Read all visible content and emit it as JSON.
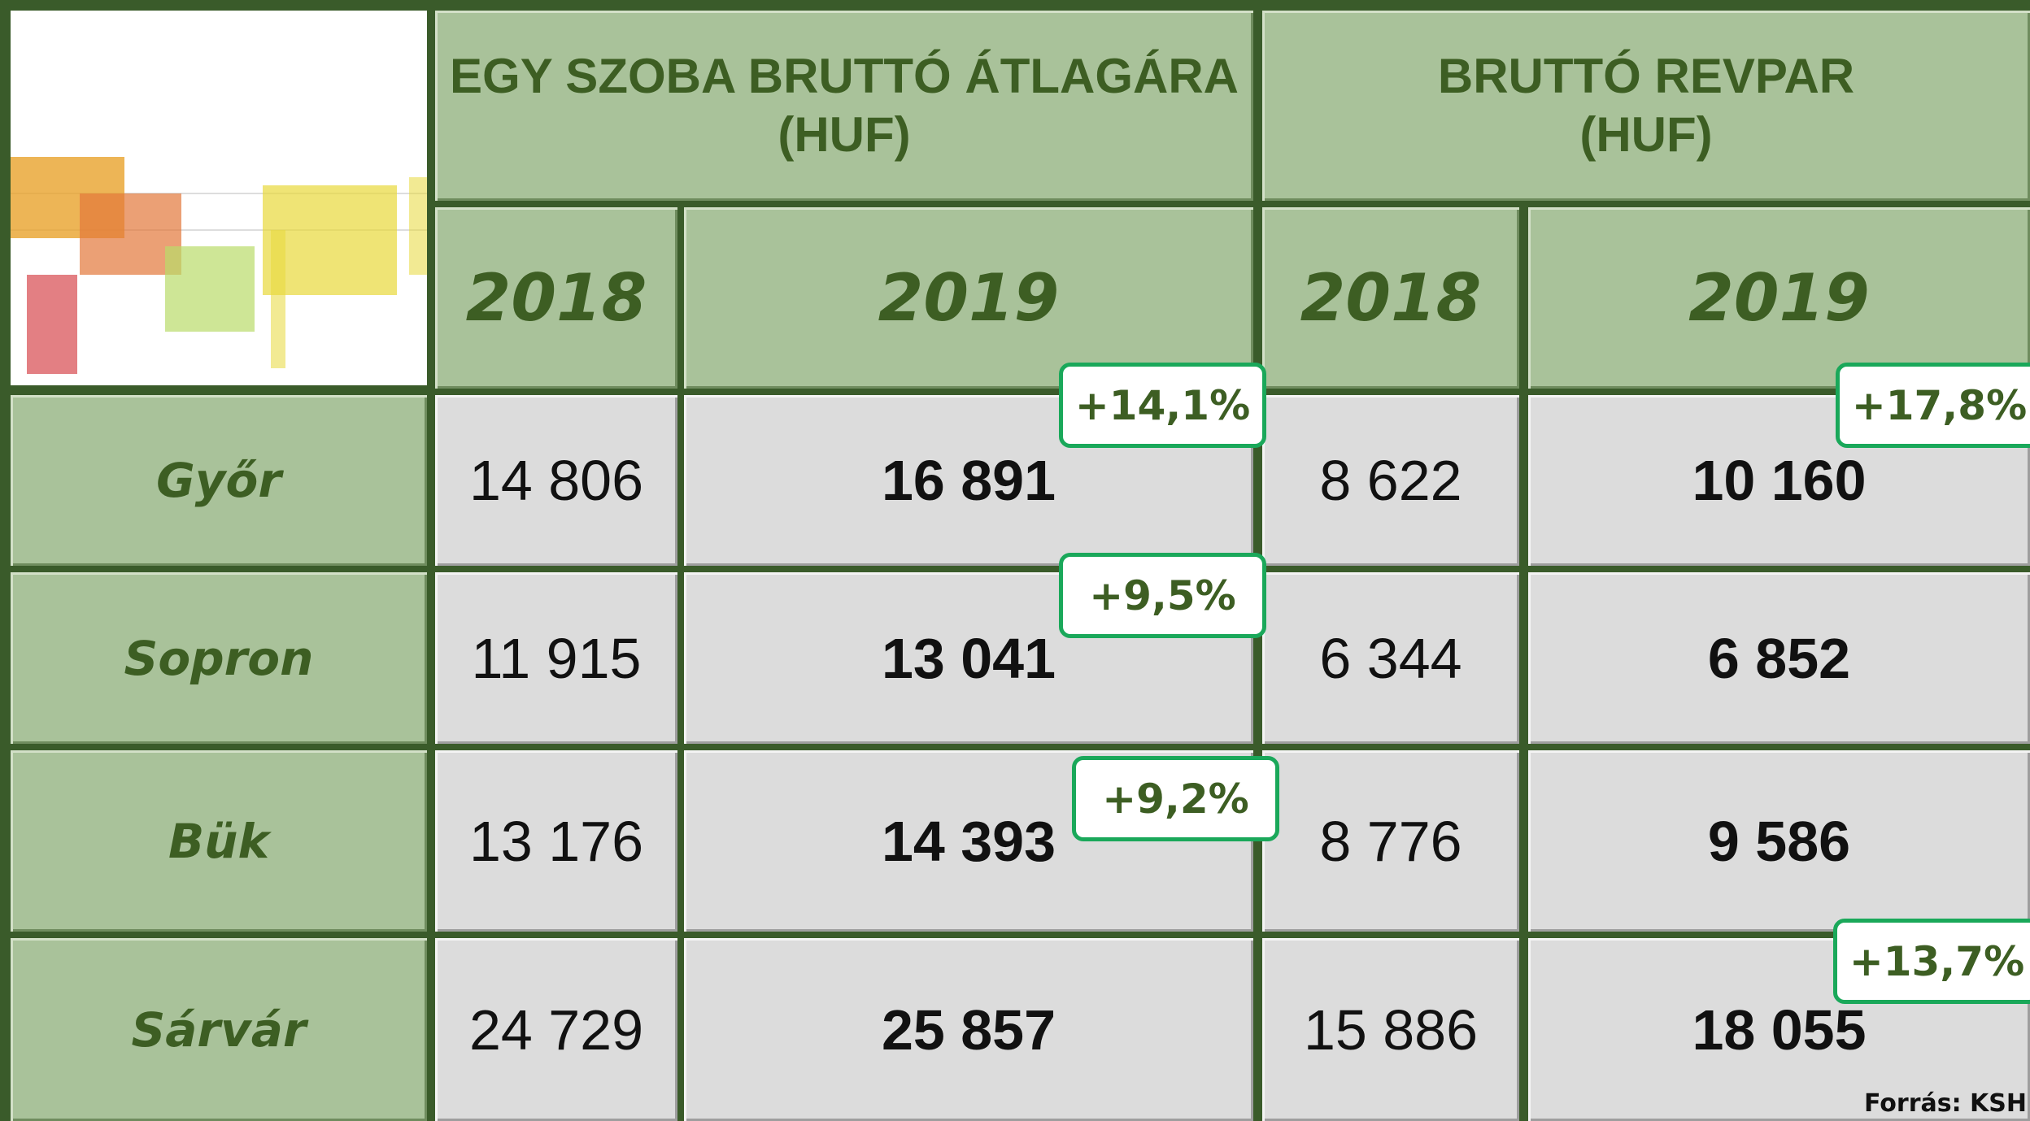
{
  "header": {
    "groups": [
      {
        "lines": [
          "EGY SZOBA BRUTTÓ ÁTLAGÁRA",
          "(HUF)"
        ]
      },
      {
        "lines": [
          "BRUTTÓ REVPAR",
          "(HUF)"
        ]
      }
    ],
    "years": [
      "2018",
      "2019",
      "2018",
      "2019"
    ]
  },
  "table": {
    "rows": [
      {
        "city": "Győr",
        "values": [
          "14 806",
          "16 891",
          "8 622",
          "10 160"
        ]
      },
      {
        "city": "Sopron",
        "values": [
          "11 915",
          "13 041",
          "6 344",
          "6 852"
        ]
      },
      {
        "city": "Bük",
        "values": [
          "13 176",
          "14 393",
          "8 776",
          "9 586"
        ]
      },
      {
        "city": "Sárvár",
        "values": [
          "24 729",
          "25 857",
          "15 886",
          "18 055"
        ]
      }
    ]
  },
  "badges": [
    {
      "label": "+14,1%"
    },
    {
      "label": "+9,5%"
    },
    {
      "label": "+9,2%"
    },
    {
      "label": "+17,8%"
    },
    {
      "label": "+13,7%"
    }
  ],
  "source": "Forrás: KSH"
}
